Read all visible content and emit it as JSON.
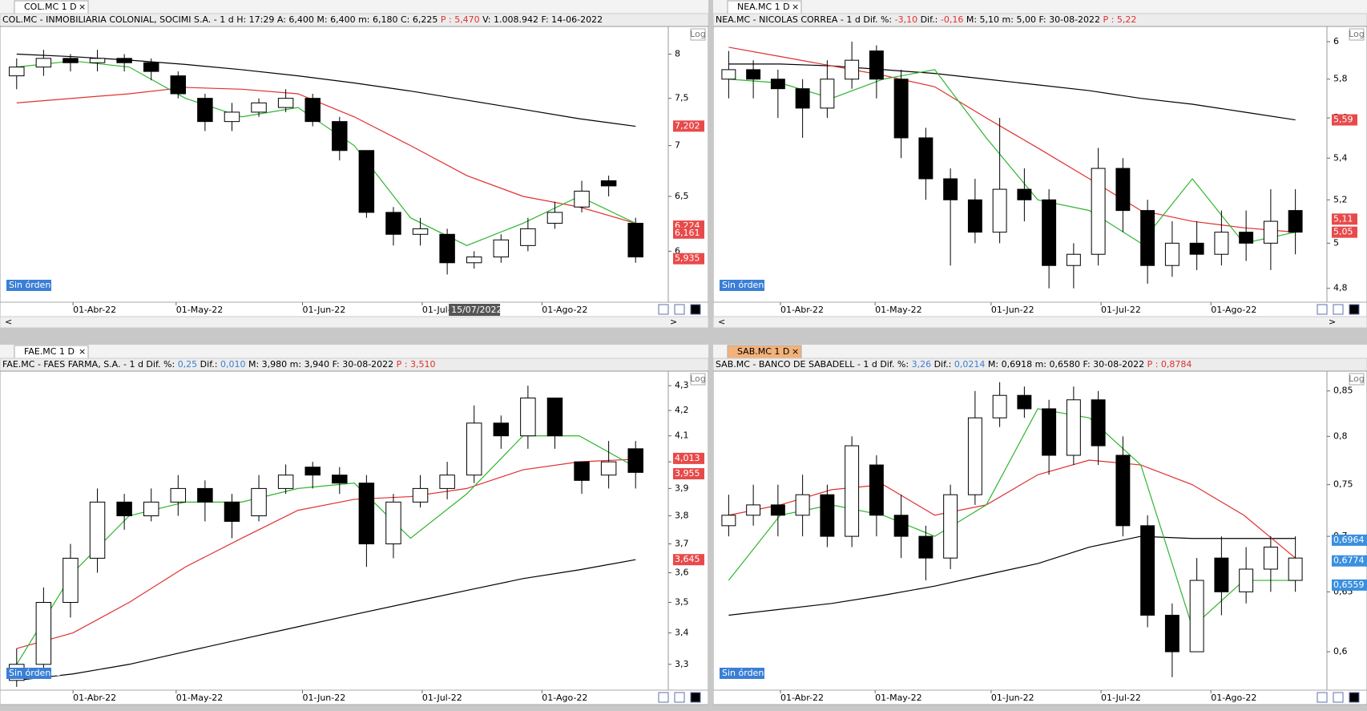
{
  "panels": [
    {
      "tab": "COL.MC 1 D",
      "header": [
        {
          "text": "COL.MC - INMOBILIARIA COLONIAL, SOCIMI S.A. -  1 d  H: 17:29  A: 6,400  M: 6,400  m: 6,180  C: 6,225  ",
          "color": "#000000"
        },
        {
          "text": "P : 5,470",
          "color": "#e03030"
        },
        {
          "text": "  V: 1.008.942  F: 14-06-2022",
          "color": "#000000"
        }
      ],
      "log_button": "Log",
      "badge": "Sin órdenes",
      "log_scale": true,
      "ylim": [
        5.57,
        8.3
      ],
      "yticks": [
        8,
        {
          "value": 7.5,
          "label": "7,5"
        },
        7,
        {
          "value": 6.5,
          "label": "6,5"
        },
        6
      ],
      "xlabels": [
        "01-Abr-22",
        "01-May-22",
        "01-Jun-22",
        "01-Jul-2",
        "01-Ago-22"
      ],
      "cursor_label": "15/07/2022",
      "price_tags": [
        {
          "value": 7.202,
          "label": "7,202",
          "color": "#e84a4a"
        },
        {
          "value": 6.224,
          "label": "6,224",
          "color": "#e84a4a"
        },
        {
          "value": 6.161,
          "label": "6,161",
          "color": "#e84a4a"
        },
        {
          "value": 5.935,
          "label": "5,935",
          "color": "#e84a4a"
        }
      ],
      "candles": {
        "open": [
          7.75,
          7.85,
          7.95,
          7.9,
          7.95,
          7.9,
          7.75,
          7.5,
          7.25,
          7.35,
          7.4,
          7.5,
          7.25,
          6.95,
          6.35,
          6.15,
          6.15,
          5.9,
          5.95,
          6.05,
          6.25,
          6.4,
          6.65,
          6.25
        ],
        "high": [
          7.95,
          8.05,
          8.0,
          8.05,
          8.0,
          7.95,
          7.8,
          7.55,
          7.45,
          7.5,
          7.6,
          7.55,
          7.3,
          6.95,
          6.4,
          6.3,
          6.2,
          6.0,
          6.15,
          6.3,
          6.45,
          6.65,
          6.7,
          6.3
        ],
        "low": [
          7.6,
          7.75,
          7.8,
          7.8,
          7.8,
          7.7,
          7.5,
          7.15,
          7.15,
          7.3,
          7.35,
          7.2,
          6.85,
          6.3,
          6.05,
          6.05,
          5.8,
          5.85,
          5.9,
          6.0,
          6.2,
          6.35,
          6.5,
          5.9
        ],
        "close": [
          7.85,
          7.95,
          7.9,
          7.95,
          7.9,
          7.8,
          7.55,
          7.25,
          7.35,
          7.45,
          7.5,
          7.25,
          6.95,
          6.35,
          6.15,
          6.2,
          5.9,
          5.95,
          6.1,
          6.2,
          6.35,
          6.55,
          6.6,
          5.95
        ]
      },
      "averages": [
        {
          "color": "#000000",
          "values": [
            8.0,
            7.97,
            7.93,
            7.88,
            7.82,
            7.75,
            7.67,
            7.58,
            7.48,
            7.38,
            7.28,
            7.2
          ]
        },
        {
          "color": "#e03030",
          "values": [
            7.45,
            7.5,
            7.55,
            7.62,
            7.6,
            7.55,
            7.3,
            7.0,
            6.7,
            6.5,
            6.4,
            6.25
          ]
        },
        {
          "color": "#2fb52f",
          "values": [
            7.85,
            7.92,
            7.85,
            7.5,
            7.3,
            7.4,
            7.0,
            6.3,
            6.05,
            6.25,
            6.5,
            6.25
          ]
        }
      ]
    },
    {
      "tab": "NEA.MC 1 D",
      "header": [
        {
          "text": "NEA.MC - NICOLAS CORREA -  1 d  Dif. %: ",
          "color": "#000000"
        },
        {
          "text": "-3,10",
          "color": "#e03030"
        },
        {
          "text": "  Dif.: ",
          "color": "#000000"
        },
        {
          "text": "-0,16",
          "color": "#e03030"
        },
        {
          "text": "  M: 5,10  m: 5,00  F: 30-08-2022  ",
          "color": "#000000"
        },
        {
          "text": "P : 5,22",
          "color": "#e03030"
        }
      ],
      "log_button": "Log",
      "badge": "Sin órdenes",
      "log_scale": true,
      "ylim": [
        4.74,
        6.07
      ],
      "yticks": [
        6,
        {
          "value": 5.8,
          "label": "5,8"
        },
        {
          "value": 5.6,
          "label": "5,6"
        },
        {
          "value": 5.4,
          "label": "5,4"
        },
        {
          "value": 5.2,
          "label": "5,2"
        },
        5,
        {
          "value": 4.8,
          "label": "4,8"
        }
      ],
      "xlabels": [
        "01-Abr-22",
        "01-May-22",
        "01-Jun-22",
        "01-Jul-22",
        "01-Ago-22"
      ],
      "price_tags": [
        {
          "value": 5.59,
          "label": "5,59",
          "color": "#e84a4a"
        },
        {
          "value": 5.11,
          "label": "5,11",
          "color": "#e84a4a"
        },
        {
          "value": 5.05,
          "label": "5,05",
          "color": "#e84a4a"
        }
      ],
      "candles": {
        "open": [
          5.8,
          5.85,
          5.8,
          5.75,
          5.65,
          5.8,
          5.95,
          5.8,
          5.5,
          5.3,
          5.2,
          5.05,
          5.25,
          5.2,
          4.9,
          4.95,
          5.35,
          5.15,
          4.9,
          5.0,
          4.95,
          5.05,
          5.0,
          5.15
        ],
        "high": [
          5.95,
          5.9,
          5.85,
          5.8,
          5.9,
          6.0,
          5.98,
          5.85,
          5.55,
          5.35,
          5.3,
          5.6,
          5.35,
          5.25,
          5.0,
          5.45,
          5.4,
          5.2,
          5.1,
          5.1,
          5.15,
          5.15,
          5.25,
          5.25
        ],
        "low": [
          5.7,
          5.7,
          5.6,
          5.5,
          5.6,
          5.75,
          5.7,
          5.4,
          5.2,
          4.9,
          5.0,
          5.0,
          5.1,
          4.8,
          4.8,
          4.9,
          5.05,
          4.82,
          4.85,
          4.88,
          4.9,
          4.92,
          4.88,
          4.95
        ],
        "close": [
          5.85,
          5.8,
          5.75,
          5.65,
          5.8,
          5.9,
          5.8,
          5.5,
          5.3,
          5.2,
          5.05,
          5.25,
          5.2,
          4.9,
          4.95,
          5.35,
          5.15,
          4.9,
          5.0,
          4.95,
          5.05,
          5.0,
          5.1,
          5.05
        ]
      },
      "averages": [
        {
          "color": "#000000",
          "values": [
            5.88,
            5.88,
            5.87,
            5.85,
            5.83,
            5.8,
            5.77,
            5.74,
            5.7,
            5.67,
            5.63,
            5.59
          ]
        },
        {
          "color": "#e03030",
          "values": [
            5.97,
            5.92,
            5.87,
            5.82,
            5.76,
            5.6,
            5.45,
            5.3,
            5.15,
            5.1,
            5.07,
            5.05
          ]
        },
        {
          "color": "#2fb52f",
          "values": [
            5.8,
            5.78,
            5.7,
            5.8,
            5.85,
            5.5,
            5.2,
            5.15,
            5.0,
            5.3,
            5.0,
            5.05
          ]
        }
      ]
    },
    {
      "tab": "FAE.MC 1 D",
      "header": [
        {
          "text": "FAE.MC - FAES FARMA, S.A. -  1 d  Dif. %: ",
          "color": "#000000"
        },
        {
          "text": "0,25",
          "color": "#3a7fd5"
        },
        {
          "text": "  Dif.: ",
          "color": "#000000"
        },
        {
          "text": "0,010",
          "color": "#3a7fd5"
        },
        {
          "text": "  M: 3,980  m: 3,940  F: 30-08-2022  ",
          "color": "#000000"
        },
        {
          "text": "P : 3,510",
          "color": "#e03030"
        }
      ],
      "log_button": "Log",
      "badge": "Sin órdenes",
      "log_scale": true,
      "ylim": [
        3.22,
        4.35
      ],
      "yticks": [
        {
          "value": 4.3,
          "label": "4,3"
        },
        {
          "value": 4.2,
          "label": "4,2"
        },
        {
          "value": 4.1,
          "label": "4,1"
        },
        4,
        {
          "value": 3.9,
          "label": "3,9"
        },
        {
          "value": 3.8,
          "label": "3,8"
        },
        {
          "value": 3.7,
          "label": "3,7"
        },
        {
          "value": 3.6,
          "label": "3,6"
        },
        {
          "value": 3.5,
          "label": "3,5"
        },
        {
          "value": 3.4,
          "label": "3,4"
        },
        {
          "value": 3.3,
          "label": "3,3"
        }
      ],
      "xlabels": [
        "01-Abr-22",
        "01-May-22",
        "01-Jun-22",
        "01-Jul-22",
        "01-Ago-22"
      ],
      "price_tags": [
        {
          "value": 4.013,
          "label": "4,013",
          "color": "#e84a4a"
        },
        {
          "value": 3.955,
          "label": "3,955",
          "color": "#e84a4a"
        },
        {
          "value": 3.645,
          "label": "3,645",
          "color": "#e84a4a"
        }
      ],
      "candles": {
        "open": [
          3.25,
          3.3,
          3.5,
          3.65,
          3.85,
          3.8,
          3.85,
          3.9,
          3.85,
          3.8,
          3.9,
          3.98,
          3.95,
          3.92,
          3.7,
          3.85,
          3.9,
          3.95,
          4.15,
          4.1,
          4.25,
          4.0,
          3.95,
          4.05
        ],
        "high": [
          3.35,
          3.55,
          3.7,
          3.9,
          3.88,
          3.9,
          3.95,
          3.93,
          3.88,
          3.95,
          3.99,
          4.0,
          3.98,
          3.95,
          3.88,
          3.95,
          4.0,
          4.22,
          4.18,
          4.3,
          4.2,
          4.0,
          4.08,
          4.08
        ],
        "low": [
          3.23,
          3.28,
          3.45,
          3.6,
          3.75,
          3.78,
          3.8,
          3.78,
          3.72,
          3.78,
          3.88,
          3.9,
          3.88,
          3.62,
          3.65,
          3.83,
          3.86,
          3.92,
          4.05,
          4.05,
          4.05,
          3.88,
          3.9,
          3.9
        ],
        "close": [
          3.3,
          3.5,
          3.65,
          3.85,
          3.8,
          3.85,
          3.9,
          3.85,
          3.78,
          3.9,
          3.95,
          3.95,
          3.92,
          3.7,
          3.85,
          3.9,
          3.95,
          4.15,
          4.1,
          4.25,
          4.1,
          3.93,
          4.0,
          3.96
        ]
      },
      "averages": [
        {
          "color": "#000000",
          "values": [
            3.25,
            3.27,
            3.3,
            3.34,
            3.38,
            3.42,
            3.46,
            3.5,
            3.54,
            3.58,
            3.61,
            3.645
          ]
        },
        {
          "color": "#e03030",
          "values": [
            3.35,
            3.4,
            3.5,
            3.62,
            3.72,
            3.82,
            3.86,
            3.87,
            3.9,
            3.97,
            4.0,
            4.01
          ]
        },
        {
          "color": "#2fb52f",
          "values": [
            3.3,
            3.6,
            3.8,
            3.85,
            3.85,
            3.9,
            3.92,
            3.72,
            3.88,
            4.1,
            4.1,
            3.98
          ]
        }
      ]
    },
    {
      "tab": "SAB.MC 1 D",
      "header": [
        {
          "text": "SAB.MC - BANCO DE SABADELL -  1 d  Dif. %: ",
          "color": "#000000"
        },
        {
          "text": "3,26",
          "color": "#3a7fd5"
        },
        {
          "text": "  Dif.: ",
          "color": "#000000"
        },
        {
          "text": "0,0214",
          "color": "#3a7fd5"
        },
        {
          "text": "  M: 0,6918  m: 0,6580  F: 30-08-2022  ",
          "color": "#000000"
        },
        {
          "text": "P : 0,8784",
          "color": "#e03030"
        }
      ],
      "log_button": "Log",
      "badge": "Sin órdenes",
      "log_scale": true,
      "ylim": [
        0.57,
        0.87
      ],
      "yticks": [
        {
          "value": 0.85,
          "label": "0,85"
        },
        {
          "value": 0.8,
          "label": "0,8"
        },
        {
          "value": 0.75,
          "label": "0,75"
        },
        {
          "value": 0.7,
          "label": "0,7"
        },
        {
          "value": 0.65,
          "label": "0,65"
        },
        {
          "value": 0.6,
          "label": "0,6"
        }
      ],
      "xlabels": [
        "01-Abr-22",
        "01-May-22",
        "01-Jun-22",
        "01-Jul-22",
        "01-Ago-22"
      ],
      "price_tags": [
        {
          "value": 0.6964,
          "label": "0,6964",
          "color": "#3a8fe0"
        },
        {
          "value": 0.6774,
          "label": "0,6774",
          "color": "#3a8fe0"
        },
        {
          "value": 0.6559,
          "label": "0,6559",
          "color": "#3a8fe0"
        }
      ],
      "candles": {
        "open": [
          0.71,
          0.72,
          0.73,
          0.72,
          0.74,
          0.7,
          0.77,
          0.72,
          0.7,
          0.68,
          0.74,
          0.82,
          0.845,
          0.83,
          0.78,
          0.84,
          0.78,
          0.71,
          0.63,
          0.6,
          0.68,
          0.65,
          0.67,
          0.66
        ],
        "high": [
          0.74,
          0.75,
          0.75,
          0.76,
          0.75,
          0.8,
          0.78,
          0.74,
          0.71,
          0.75,
          0.85,
          0.86,
          0.855,
          0.84,
          0.855,
          0.85,
          0.8,
          0.72,
          0.64,
          0.68,
          0.7,
          0.69,
          0.7,
          0.7
        ],
        "low": [
          0.7,
          0.71,
          0.7,
          0.7,
          0.69,
          0.69,
          0.7,
          0.68,
          0.66,
          0.67,
          0.73,
          0.81,
          0.82,
          0.76,
          0.77,
          0.77,
          0.7,
          0.62,
          0.58,
          0.6,
          0.63,
          0.64,
          0.65,
          0.65
        ],
        "close": [
          0.72,
          0.73,
          0.72,
          0.74,
          0.7,
          0.79,
          0.72,
          0.7,
          0.68,
          0.74,
          0.82,
          0.845,
          0.83,
          0.78,
          0.84,
          0.79,
          0.71,
          0.63,
          0.6,
          0.66,
          0.65,
          0.67,
          0.69,
          0.68
        ]
      },
      "averages": [
        {
          "color": "#000000",
          "values": [
            0.63,
            0.635,
            0.64,
            0.647,
            0.655,
            0.665,
            0.675,
            0.69,
            0.7,
            0.698,
            0.698,
            0.698
          ]
        },
        {
          "color": "#e03030",
          "values": [
            0.72,
            0.73,
            0.745,
            0.75,
            0.72,
            0.73,
            0.76,
            0.775,
            0.77,
            0.75,
            0.72,
            0.68
          ]
        },
        {
          "color": "#2fb52f",
          "values": [
            0.66,
            0.72,
            0.73,
            0.72,
            0.7,
            0.73,
            0.83,
            0.82,
            0.77,
            0.62,
            0.66,
            0.66
          ]
        }
      ]
    }
  ]
}
